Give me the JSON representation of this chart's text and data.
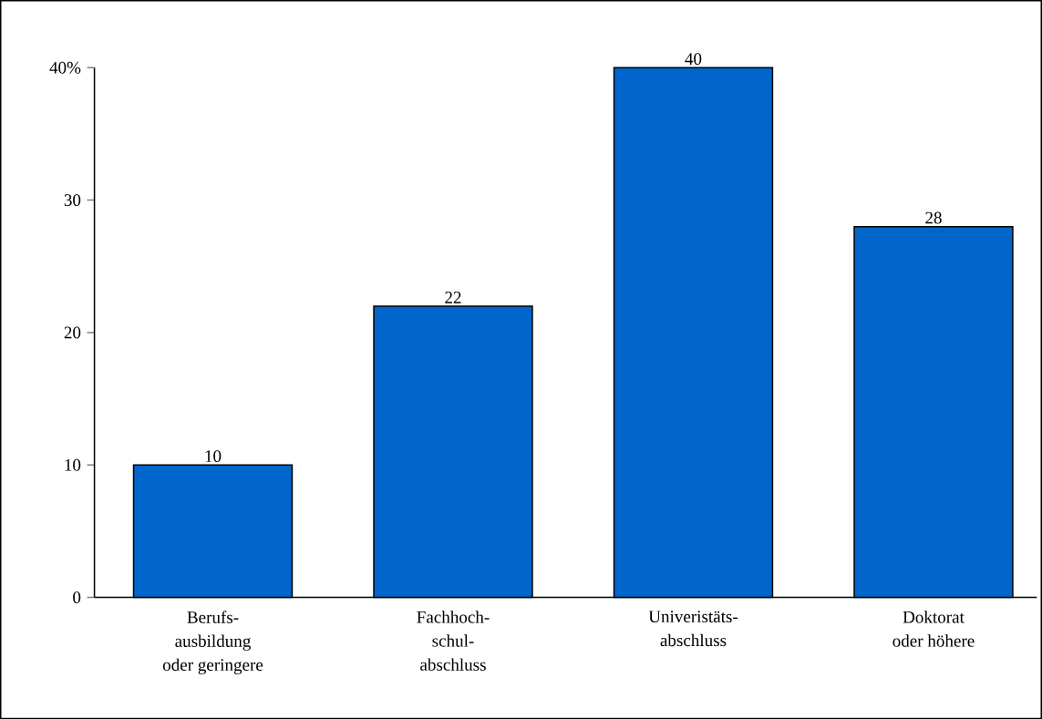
{
  "chart_data": {
    "type": "bar",
    "categories": [
      "Berufs-\nausbildung\noder geringere",
      "Fachhoch-\nschul-\nabschluss",
      "Univeristäts-\nabschluss",
      "Doktorat\noder höhere"
    ],
    "values": [
      10,
      22,
      40,
      28
    ],
    "color": "#0066cc",
    "data_labels": true,
    "ylim": [
      0,
      40
    ],
    "yticks": [
      0,
      10,
      20,
      30,
      {
        "value": 40,
        "label": "40%"
      }
    ],
    "grid": false
  }
}
